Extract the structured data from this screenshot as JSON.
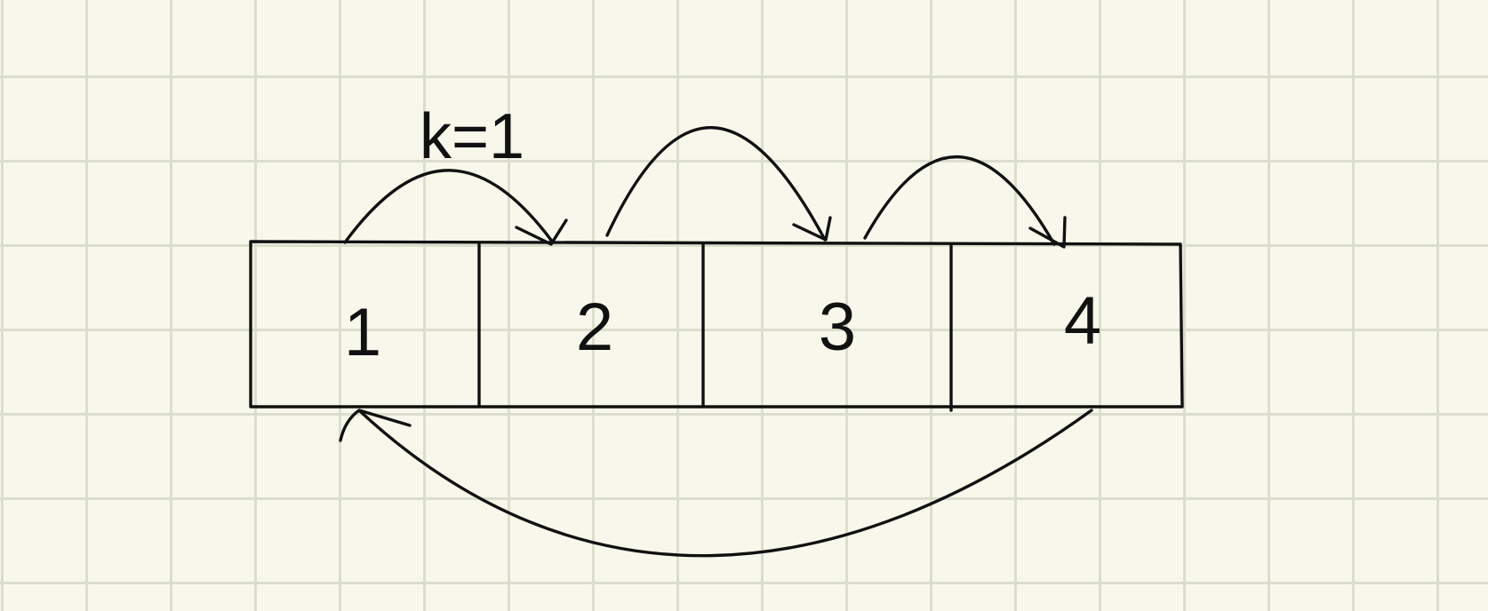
{
  "diagram": {
    "annotation": "k=1",
    "cells": [
      {
        "label": "1"
      },
      {
        "label": "2"
      },
      {
        "label": "3"
      },
      {
        "label": "4"
      }
    ],
    "arrows": [
      {
        "from": "1",
        "to": "2"
      },
      {
        "from": "2",
        "to": "3"
      },
      {
        "from": "3",
        "to": "4"
      },
      {
        "from": "4",
        "to": "1"
      }
    ],
    "colors": {
      "background": "#f8f7eb",
      "grid": "#dcdecd",
      "ink": "#111111"
    }
  }
}
